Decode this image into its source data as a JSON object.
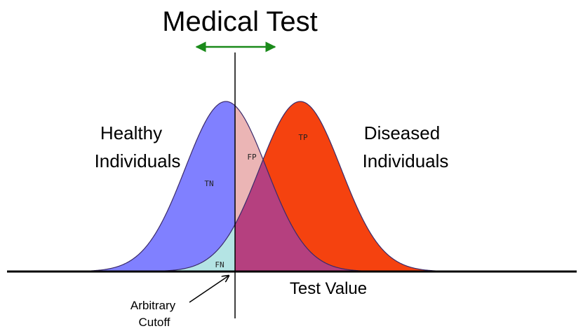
{
  "title": "Medical Test",
  "groups": {
    "healthy": [
      "Healthy",
      "Individuals"
    ],
    "diseased": [
      "Diseased",
      "Individuals"
    ]
  },
  "regions": {
    "tn": "TN",
    "fp": "FP",
    "tp": "TP",
    "fn": "FN"
  },
  "axis_label": "Test Value",
  "cutoff": [
    "Arbitrary",
    "Cutoff"
  ]
}
